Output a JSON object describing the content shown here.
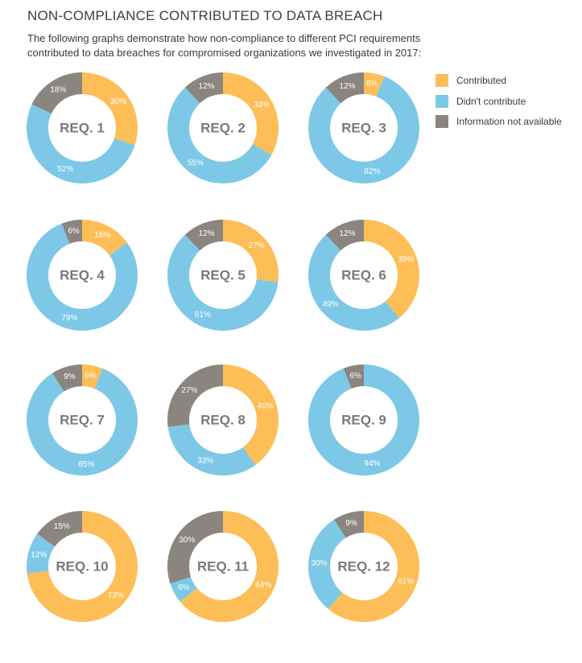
{
  "title": "NON-COMPLIANCE CONTRIBUTED TO DATA BREACH",
  "subtitle_lines": [
    "The following graphs demonstrate how non-compliance to different PCI requirements",
    "contributed to data breaches for compromised organizations we investigated in 2017:"
  ],
  "legend": [
    {
      "label": "Contributed",
      "color": "#FDBE57"
    },
    {
      "label": "Didn't contribute",
      "color": "#7DC8E7"
    },
    {
      "label": "Information not available",
      "color": "#8A857F"
    }
  ],
  "chart_data": {
    "type": "pie",
    "variant": "donut",
    "categories": [
      "Contributed",
      "Didn't contribute",
      "Information not available"
    ],
    "colors": [
      "#FDBE57",
      "#7DC8E7",
      "#8A857F"
    ],
    "charts": [
      {
        "label": "REQ. 1",
        "values": [
          30,
          52,
          18
        ]
      },
      {
        "label": "REQ. 2",
        "values": [
          33,
          55,
          12
        ]
      },
      {
        "label": "REQ. 3",
        "values": [
          6,
          82,
          12
        ]
      },
      {
        "label": "REQ. 4",
        "values": [
          15,
          79,
          6
        ]
      },
      {
        "label": "REQ. 5",
        "values": [
          27,
          61,
          12
        ]
      },
      {
        "label": "REQ. 6",
        "values": [
          39,
          49,
          12
        ]
      },
      {
        "label": "REQ. 7",
        "values": [
          6,
          85,
          9
        ]
      },
      {
        "label": "REQ. 8",
        "values": [
          40,
          33,
          27
        ]
      },
      {
        "label": "REQ. 9",
        "values": [
          0,
          94,
          6
        ]
      },
      {
        "label": "REQ. 10",
        "values": [
          73,
          12,
          15
        ]
      },
      {
        "label": "REQ. 11",
        "values": [
          64,
          6,
          30
        ]
      },
      {
        "label": "REQ. 12",
        "values": [
          61,
          30,
          9
        ]
      }
    ]
  }
}
